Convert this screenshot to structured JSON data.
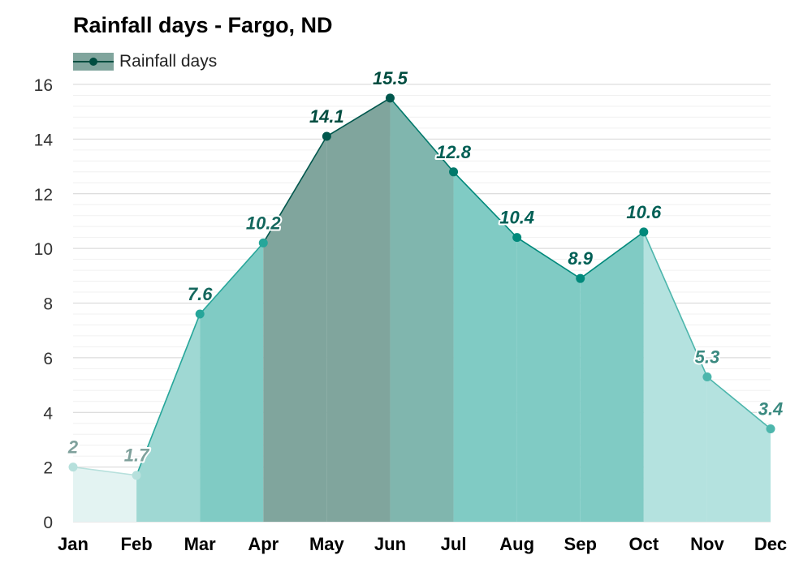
{
  "chart_data": {
    "type": "area",
    "title": "Rainfall days - Fargo, ND",
    "legend": {
      "position": "top-left",
      "entries": [
        "Rainfall days"
      ]
    },
    "categories": [
      "Jan",
      "Feb",
      "Mar",
      "Apr",
      "May",
      "Jun",
      "Jul",
      "Aug",
      "Sep",
      "Oct",
      "Nov",
      "Dec"
    ],
    "series": [
      {
        "name": "Rainfall days",
        "values": [
          2,
          1.7,
          7.6,
          10.2,
          14.1,
          15.5,
          12.8,
          10.4,
          8.9,
          10.6,
          5.3,
          3.4
        ],
        "labels": [
          "2",
          "1.7",
          "7.6",
          "10.2",
          "14.1",
          "15.5",
          "12.8",
          "10.4",
          "8.9",
          "10.6",
          "5.3",
          "3.4"
        ]
      }
    ],
    "xlabel": "",
    "ylabel": "",
    "ylim": [
      0,
      16
    ],
    "yticks": [
      0,
      2,
      4,
      6,
      8,
      10,
      12,
      14,
      16
    ],
    "grid": true,
    "colors": {
      "band_fill": [
        "#e3f3f2",
        "#e3f3f2",
        "#9fd8d3",
        "#80cbc4",
        "#80a59d",
        "#80a59d",
        "#80b6ae",
        "#80cbc4",
        "#80cbc4",
        "#80cbc4",
        "#b4e2df",
        "#b4e2df"
      ],
      "point": [
        "#b6e0dc",
        "#b6e0dc",
        "#26a69a",
        "#26a69a",
        "#00574d",
        "#00574d",
        "#00796b",
        "#00897b",
        "#00897b",
        "#00897b",
        "#4db6ac",
        "#4db6ac"
      ],
      "label": [
        "#7fa19c",
        "#7fa19c",
        "#14675d",
        "#14675d",
        "#004d40",
        "#004d40",
        "#005f55",
        "#005f55",
        "#005f55",
        "#005f55",
        "#3b8a80",
        "#3b8a80"
      ],
      "legend_swatch": "#80a59d",
      "legend_line": "#004d40"
    }
  }
}
